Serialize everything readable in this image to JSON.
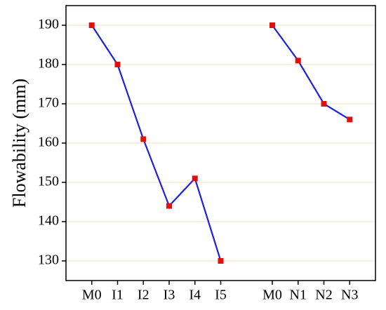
{
  "chart_data": {
    "type": "line",
    "y_label": "Flowability (mm)",
    "categories": [
      "M0",
      "I1",
      "I2",
      "I3",
      "I4",
      "I5",
      null,
      "M0",
      "N1",
      "N2",
      "N3"
    ],
    "values": [
      190,
      180,
      161,
      144,
      151,
      130,
      null,
      190,
      181,
      170,
      166
    ],
    "color": "#1f1fe0",
    "marker_color": "#e01010",
    "ylim": [
      125,
      195
    ],
    "yticks": [
      130,
      140,
      150,
      160,
      170,
      180,
      190
    ],
    "grid": true,
    "grid_color": "#f5deb8"
  }
}
